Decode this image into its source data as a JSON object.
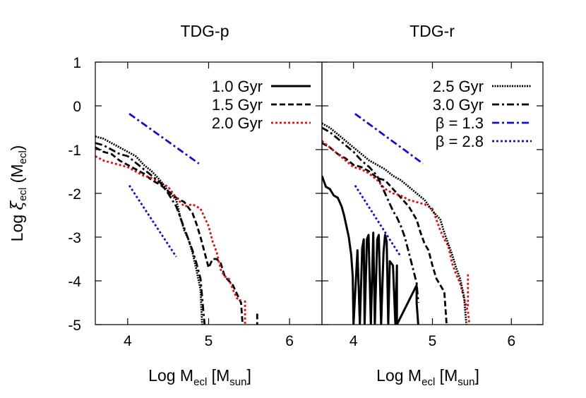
{
  "chart_data": [
    {
      "type": "line",
      "title": "TDG-p",
      "xlabel": "Log M_ecl [M_sun]",
      "ylabel": "Log ξ_ecl (M_ecl)",
      "xlim": [
        3.6,
        6.4
      ],
      "ylim": [
        -5,
        1
      ],
      "xticks": [
        "4",
        "5",
        "6"
      ],
      "yticks": [
        "1",
        "0",
        "-1",
        "-2",
        "-3",
        "-4",
        "-5"
      ],
      "legend": [
        "1.0 Gyr",
        "1.5 Gyr",
        "2.0 Gyr"
      ],
      "legend_position": "top-right",
      "series": [
        {
          "name": "1.0 Gyr",
          "style": "solid",
          "color": "#000000",
          "x": [],
          "y": []
        },
        {
          "name": "1.5 Gyr",
          "style": "dashed",
          "color": "#000000",
          "x": [
            3.6,
            3.7,
            3.8,
            3.9,
            4.0,
            4.1,
            4.2,
            4.3,
            4.4,
            4.5,
            4.6,
            4.7,
            4.8,
            4.85,
            4.9,
            4.95,
            5.0,
            5.05,
            5.1,
            5.15,
            5.2,
            5.25,
            5.3,
            5.35,
            5.4,
            5.42
          ],
          "y": [
            -0.95,
            -1.05,
            -1.1,
            -1.25,
            -1.35,
            -1.45,
            -1.55,
            -1.7,
            -1.8,
            -1.95,
            -2.1,
            -2.2,
            -2.45,
            -2.7,
            -3.0,
            -3.35,
            -3.7,
            -3.5,
            -3.5,
            -3.6,
            -3.9,
            -4.0,
            -4.1,
            -4.3,
            -4.5,
            -5.0
          ]
        },
        {
          "name": "2.0 Gyr",
          "style": "dotted",
          "color": "#dd1111",
          "x": [
            3.6,
            3.7,
            3.8,
            3.9,
            4.0,
            4.1,
            4.2,
            4.3,
            4.4,
            4.5,
            4.6,
            4.7,
            4.8,
            4.9,
            5.0,
            5.05,
            5.1,
            5.15,
            5.2,
            5.25,
            5.3,
            5.35,
            5.4
          ],
          "y": [
            -1.15,
            -1.25,
            -1.3,
            -1.35,
            -1.4,
            -1.5,
            -1.6,
            -1.65,
            -1.75,
            -1.85,
            -2.1,
            -2.3,
            -2.25,
            -2.35,
            -2.75,
            -3.1,
            -3.35,
            -3.75,
            -3.9,
            -3.95,
            -4.2,
            -4.4,
            -4.45
          ]
        },
        {
          "name": "2.5 Gyr",
          "style": "densedot",
          "color": "#000000",
          "x": [
            3.6,
            3.7,
            3.8,
            3.9,
            4.0,
            4.1,
            4.2,
            4.3,
            4.4,
            4.5,
            4.6,
            4.65,
            4.7,
            4.75,
            4.8,
            4.85,
            4.9,
            4.92
          ],
          "y": [
            -0.7,
            -0.75,
            -0.85,
            -0.95,
            -1.05,
            -1.15,
            -1.35,
            -1.5,
            -1.7,
            -1.95,
            -2.15,
            -2.55,
            -2.85,
            -3.05,
            -3.35,
            -3.75,
            -4.2,
            -5.0
          ]
        },
        {
          "name": "3.0 Gyr",
          "style": "dashdot",
          "color": "#000000",
          "x": [
            3.6,
            3.7,
            3.8,
            3.9,
            4.0,
            4.1,
            4.2,
            4.3,
            4.4,
            4.5,
            4.6,
            4.65,
            4.7,
            4.75,
            4.8,
            4.85,
            4.9,
            4.95
          ],
          "y": [
            -0.85,
            -0.9,
            -1.0,
            -1.1,
            -1.15,
            -1.3,
            -1.45,
            -1.6,
            -1.75,
            -2.0,
            -2.3,
            -2.55,
            -2.8,
            -3.05,
            -3.3,
            -3.6,
            -3.95,
            -5.0
          ]
        },
        {
          "name": "β = 1.3",
          "style": "dashdot",
          "color": "#1111cc",
          "x": [
            4.02,
            4.88
          ],
          "y": [
            -0.18,
            -1.32
          ]
        },
        {
          "name": "β = 2.8",
          "style": "dotted",
          "color": "#1111cc",
          "x": [
            4.02,
            4.6
          ],
          "y": [
            -1.82,
            -3.45
          ]
        }
      ],
      "annotations": [
        {
          "series": "1.5 Gyr",
          "x": 5.6,
          "y": [
            -4.75,
            -5.0
          ]
        },
        {
          "series": "2.0 Gyr",
          "x": 5.45,
          "y": [
            -4.45,
            -5.0
          ]
        }
      ]
    },
    {
      "type": "line",
      "title": "TDG-r",
      "xlabel": "Log M_ecl [M_sun]",
      "ylabel": "",
      "xlim": [
        3.6,
        6.4
      ],
      "ylim": [
        -5,
        1
      ],
      "xticks": [
        "4",
        "5",
        "6"
      ],
      "legend": [
        "2.5 Gyr",
        "3.0 Gyr",
        "β = 1.3",
        "β = 2.8"
      ],
      "legend_position": "top-right",
      "series": [
        {
          "name": "1.0 Gyr",
          "style": "solid",
          "color": "#000000",
          "x": [
            3.6,
            3.65,
            3.7,
            3.75,
            3.8,
            3.85,
            3.88,
            3.91,
            3.94,
            3.97,
            3.99,
            4.0,
            4.0,
            4.05,
            4.08,
            4.11,
            4.13,
            4.14,
            4.17,
            4.19,
            4.22,
            4.25,
            4.27,
            4.3,
            4.32,
            4.35,
            4.38,
            4.4,
            4.42,
            4.44,
            4.46,
            4.5,
            4.53,
            4.55,
            4.55,
            4.8,
            4.8,
            4.82
          ],
          "y": [
            -1.6,
            -1.85,
            -1.9,
            -2.05,
            -2.1,
            -2.3,
            -2.5,
            -2.75,
            -3.0,
            -3.4,
            -3.9,
            -5.0,
            -5.0,
            -3.3,
            -5.0,
            -3.25,
            -3.05,
            -5.0,
            -3.05,
            -2.95,
            -5.0,
            -2.9,
            -5.0,
            -3.05,
            -2.95,
            -5.0,
            -3.35,
            -2.95,
            -3.1,
            -5.0,
            -3.55,
            -3.65,
            -5.0,
            -3.65,
            -5.0,
            -4.1,
            -4.5,
            -5.0
          ]
        },
        {
          "name": "1.5 Gyr",
          "style": "dashed",
          "color": "#000000",
          "x": [
            3.6,
            3.7,
            3.8,
            3.9,
            4.0,
            4.1,
            4.2,
            4.3,
            4.4,
            4.5,
            4.6,
            4.7,
            4.8,
            4.85,
            4.9,
            4.95,
            5.0,
            5.05,
            5.1,
            5.15,
            5.18
          ],
          "y": [
            -0.85,
            -0.95,
            -1.1,
            -1.2,
            -1.35,
            -1.4,
            -1.5,
            -1.65,
            -1.7,
            -1.9,
            -2.1,
            -2.3,
            -2.6,
            -2.9,
            -3.15,
            -3.3,
            -3.65,
            -3.95,
            -4.1,
            -4.25,
            -5.0
          ]
        },
        {
          "name": "2.0 Gyr",
          "style": "dotted",
          "color": "#dd1111",
          "x": [
            3.6,
            3.7,
            3.8,
            3.9,
            4.0,
            4.1,
            4.2,
            4.3,
            4.4,
            4.5,
            4.6,
            4.7,
            4.8,
            4.9,
            5.0,
            5.05,
            5.1,
            5.15,
            5.2,
            5.25,
            5.3,
            5.35,
            5.4,
            5.45,
            5.47
          ],
          "y": [
            -0.8,
            -0.95,
            -1.1,
            -1.25,
            -1.4,
            -1.45,
            -1.55,
            -1.7,
            -1.9,
            -2.0,
            -2.05,
            -2.15,
            -2.2,
            -2.25,
            -2.35,
            -2.6,
            -2.85,
            -3.05,
            -3.2,
            -3.6,
            -3.85,
            -4.05,
            -4.4,
            -4.7,
            -5.0
          ]
        },
        {
          "name": "2.5 Gyr",
          "style": "densedot",
          "color": "#000000",
          "x": [
            3.6,
            3.7,
            3.8,
            3.9,
            4.0,
            4.1,
            4.2,
            4.3,
            4.4,
            4.5,
            4.6,
            4.7,
            4.8,
            4.9,
            5.0,
            5.1,
            5.15,
            5.2,
            5.25,
            5.3,
            5.35,
            5.4,
            5.43
          ],
          "y": [
            -0.4,
            -0.5,
            -0.65,
            -0.8,
            -0.95,
            -1.1,
            -1.25,
            -1.35,
            -1.45,
            -1.6,
            -1.7,
            -1.85,
            -2.0,
            -2.15,
            -2.4,
            -2.6,
            -2.9,
            -3.15,
            -3.4,
            -3.7,
            -3.95,
            -4.35,
            -5.0
          ]
        },
        {
          "name": "3.0 Gyr",
          "style": "dashdot",
          "color": "#000000",
          "x": [
            3.6,
            3.7,
            3.8,
            3.9,
            4.0,
            4.1,
            4.2,
            4.3,
            4.35,
            4.4,
            4.45,
            4.5,
            4.55,
            4.6,
            4.65,
            4.7,
            4.75,
            4.8,
            4.82
          ],
          "y": [
            -0.5,
            -0.6,
            -0.75,
            -0.9,
            -1.05,
            -1.25,
            -1.4,
            -1.6,
            -1.8,
            -2.0,
            -2.2,
            -2.4,
            -2.55,
            -2.75,
            -3.0,
            -3.35,
            -3.7,
            -4.05,
            -4.5
          ]
        },
        {
          "name": "β = 1.3",
          "style": "dashdot",
          "color": "#1111cc",
          "x": [
            4.02,
            4.88
          ],
          "y": [
            -0.18,
            -1.32
          ]
        },
        {
          "name": "β = 2.8",
          "style": "dotted",
          "color": "#1111cc",
          "x": [
            4.02,
            4.6
          ],
          "y": [
            -1.82,
            -3.45
          ]
        }
      ],
      "annotations": [
        {
          "series": "2.0 Gyr",
          "x": 5.45,
          "y": [
            -3.85,
            -4.6
          ]
        }
      ]
    }
  ]
}
